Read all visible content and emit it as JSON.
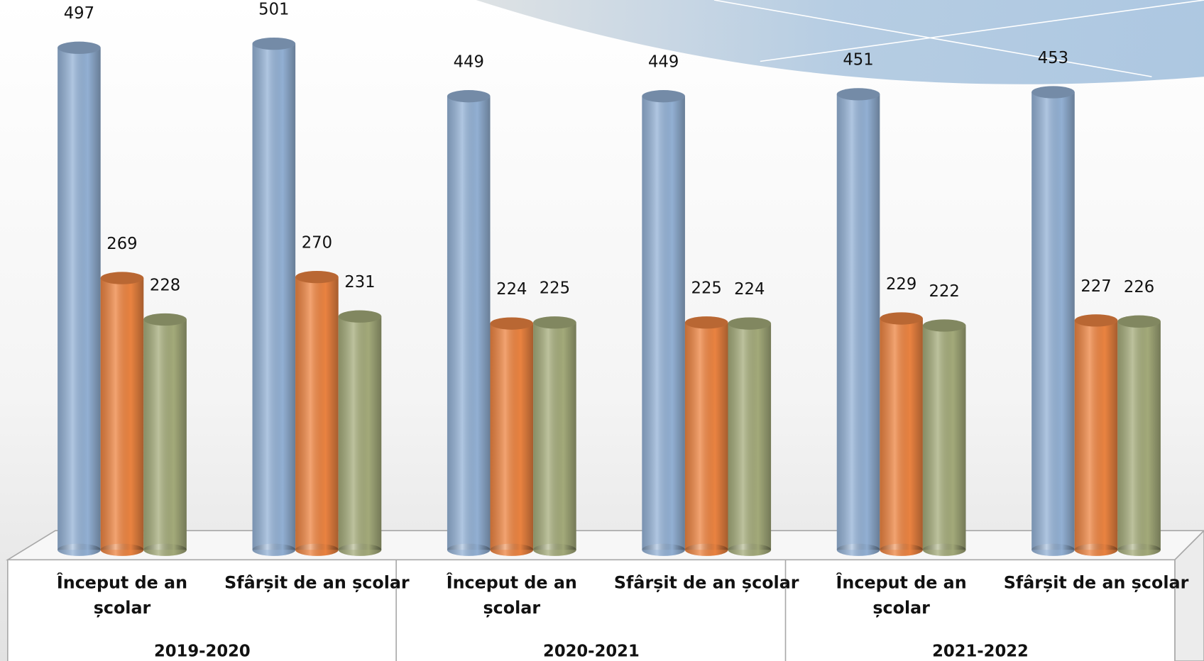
{
  "chart_data": {
    "type": "bar3d",
    "categories": [
      "Început de an școlar",
      "Sfârșit de an școlar",
      "Început de an școlar",
      "Sfârșit de an școlar",
      "Început de an școlar",
      "Sfârșit de an școlar"
    ],
    "groups": [
      "2019-2020",
      "2020-2021",
      "2021-2022"
    ],
    "series": [
      {
        "color": "#95b3d7",
        "values": [
          497,
          501,
          449,
          449,
          451,
          453
        ]
      },
      {
        "color": "#ee8542",
        "values": [
          269,
          270,
          224,
          225,
          229,
          227
        ]
      },
      {
        "color": "#a6ad7c",
        "values": [
          228,
          231,
          225,
          224,
          222,
          226
        ]
      }
    ]
  }
}
